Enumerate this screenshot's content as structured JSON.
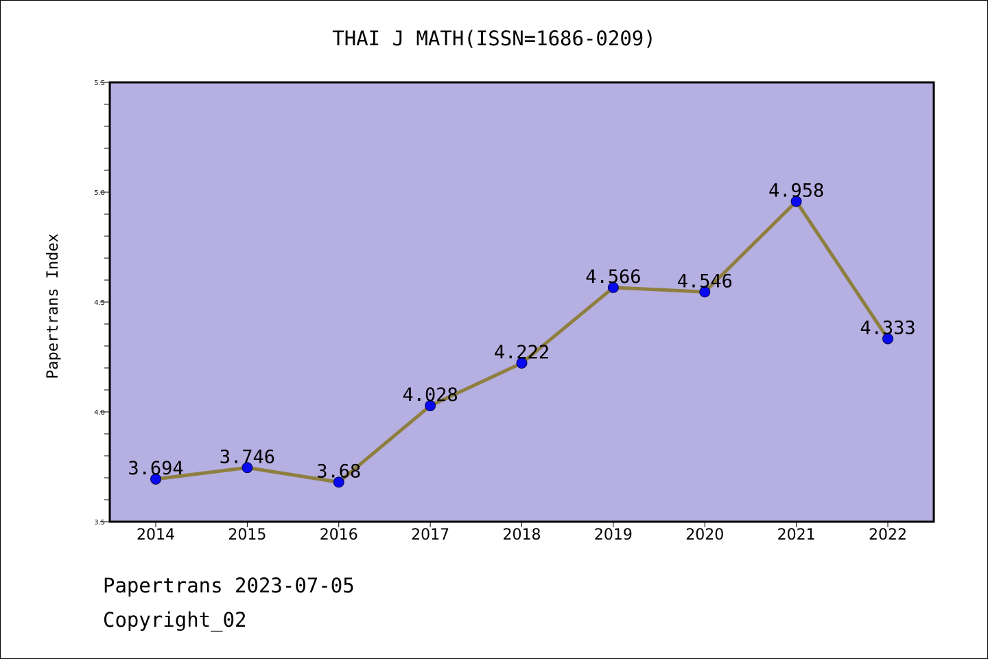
{
  "chart_data": {
    "type": "line",
    "title": "THAI J MATH(ISSN=1686-0209)",
    "xlabel": "",
    "ylabel": "Papertrans Index",
    "categories": [
      "2014",
      "2015",
      "2016",
      "2017",
      "2018",
      "2019",
      "2020",
      "2021",
      "2022"
    ],
    "series": [
      {
        "name": "Papertrans Index",
        "values": [
          3.694,
          3.746,
          3.68,
          4.028,
          4.222,
          4.566,
          4.546,
          4.958,
          4.333
        ],
        "labels": [
          "3.694",
          "3.746",
          "3.68",
          "4.028",
          "4.222",
          "4.566",
          "4.546",
          "4.958",
          "4.333"
        ]
      }
    ],
    "ylim": [
      3.5,
      5.5
    ],
    "yticks": [
      3.5,
      4.0,
      4.5,
      5.0,
      5.5
    ],
    "ytick_labels": [
      "3.5",
      "4.0",
      "4.5",
      "5.0",
      "5.5"
    ],
    "y_minor_step": 0.1,
    "grid": false,
    "colors": {
      "plot_background": "#b5afe2",
      "line": "#8f7f3f",
      "marker": "#0a0af0",
      "axis": "#000000"
    }
  },
  "footer": {
    "date_line": "Papertrans 2023-07-05",
    "copyright": "Copyright_02"
  }
}
